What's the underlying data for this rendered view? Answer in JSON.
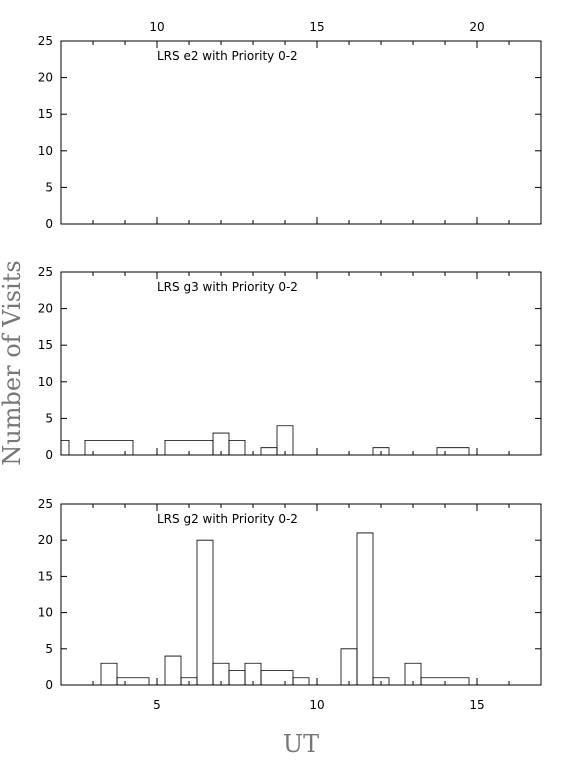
{
  "chart_data": {
    "type": "histogram",
    "ylabel": "Number of Visits",
    "xlabel": "UT",
    "top_axis_ticks": [
      10,
      15,
      20
    ],
    "bottom_axis_ticks": [
      5,
      10,
      15
    ],
    "y_ticks": [
      0,
      5,
      10,
      15,
      20,
      25
    ],
    "ylim": [
      0,
      25
    ],
    "panels": [
      {
        "title": "LRS e2 with Priority 0-2",
        "bins": []
      },
      {
        "title": "LRS g3 with Priority 0-2",
        "bins": [
          {
            "x0": 2.0,
            "x1": 2.25,
            "y": 2
          },
          {
            "x0": 2.25,
            "x1": 2.75,
            "y": 0
          },
          {
            "x0": 2.75,
            "x1": 4.25,
            "y": 2
          },
          {
            "x0": 4.25,
            "x1": 5.25,
            "y": 0
          },
          {
            "x0": 5.25,
            "x1": 6.75,
            "y": 2
          },
          {
            "x0": 6.75,
            "x1": 7.25,
            "y": 3
          },
          {
            "x0": 7.25,
            "x1": 7.75,
            "y": 2
          },
          {
            "x0": 7.75,
            "x1": 8.25,
            "y": 0
          },
          {
            "x0": 8.25,
            "x1": 8.75,
            "y": 1
          },
          {
            "x0": 8.75,
            "x1": 9.25,
            "y": 4
          },
          {
            "x0": 9.25,
            "x1": 11.75,
            "y": 0
          },
          {
            "x0": 11.75,
            "x1": 12.25,
            "y": 1
          },
          {
            "x0": 12.25,
            "x1": 13.75,
            "y": 0
          },
          {
            "x0": 13.75,
            "x1": 14.75,
            "y": 1
          },
          {
            "x0": 14.75,
            "x1": 17.0,
            "y": 0
          }
        ]
      },
      {
        "title": "LRS g2 with Priority 0-2",
        "bins": [
          {
            "x0": 2.0,
            "x1": 3.25,
            "y": 0
          },
          {
            "x0": 3.25,
            "x1": 3.75,
            "y": 3
          },
          {
            "x0": 3.75,
            "x1": 4.75,
            "y": 1
          },
          {
            "x0": 4.75,
            "x1": 5.25,
            "y": 0
          },
          {
            "x0": 5.25,
            "x1": 5.75,
            "y": 4
          },
          {
            "x0": 5.75,
            "x1": 6.25,
            "y": 1
          },
          {
            "x0": 6.25,
            "x1": 6.75,
            "y": 20
          },
          {
            "x0": 6.75,
            "x1": 7.25,
            "y": 3
          },
          {
            "x0": 7.25,
            "x1": 7.75,
            "y": 2
          },
          {
            "x0": 7.75,
            "x1": 8.25,
            "y": 3
          },
          {
            "x0": 8.25,
            "x1": 9.25,
            "y": 2
          },
          {
            "x0": 9.25,
            "x1": 9.75,
            "y": 1
          },
          {
            "x0": 9.75,
            "x1": 10.75,
            "y": 0
          },
          {
            "x0": 10.75,
            "x1": 11.25,
            "y": 5
          },
          {
            "x0": 11.25,
            "x1": 11.75,
            "y": 21
          },
          {
            "x0": 11.75,
            "x1": 12.25,
            "y": 1
          },
          {
            "x0": 12.25,
            "x1": 12.75,
            "y": 0
          },
          {
            "x0": 12.75,
            "x1": 13.25,
            "y": 3
          },
          {
            "x0": 13.25,
            "x1": 14.75,
            "y": 1
          },
          {
            "x0": 14.75,
            "x1": 17.0,
            "y": 0
          }
        ]
      }
    ]
  }
}
